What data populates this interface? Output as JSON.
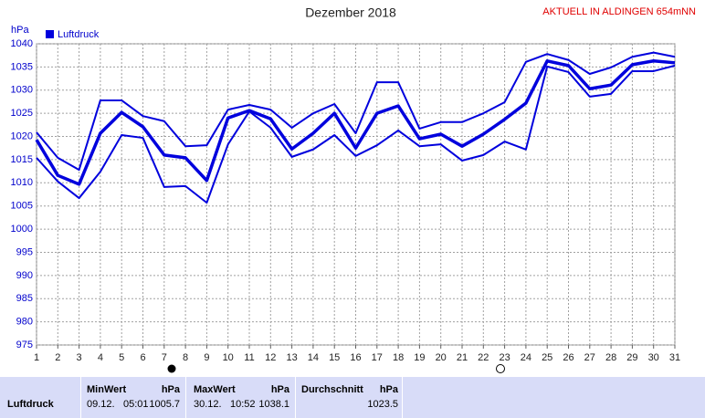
{
  "chart_data": {
    "type": "line",
    "title": "Dezember 2018",
    "subtitle": "AKTUELL IN ALDINGEN 654mNN",
    "y_label": "hPa",
    "x": [
      1,
      2,
      3,
      4,
      5,
      6,
      7,
      8,
      9,
      10,
      11,
      12,
      13,
      14,
      15,
      16,
      17,
      18,
      19,
      20,
      21,
      22,
      23,
      24,
      25,
      26,
      27,
      28,
      29,
      30,
      31
    ],
    "xlim": [
      1,
      31
    ],
    "series": [
      {
        "name": "Luftdruck",
        "color": "#0000dd",
        "values": [
          1019.3,
          1011.6,
          1009.7,
          1020.7,
          1025.2,
          1022.1,
          1016.0,
          1015.4,
          1010.5,
          1024.0,
          1025.6,
          1023.8,
          1017.3,
          1020.7,
          1025.0,
          1017.5,
          1025.0,
          1026.6,
          1019.5,
          1020.5,
          1017.9,
          1020.5,
          1023.7,
          1027.2,
          1036.3,
          1035.3,
          1030.3,
          1031.1,
          1035.5,
          1036.3,
          1035.9
        ],
        "high": [
          1020.9,
          1015.4,
          1012.8,
          1027.8,
          1027.8,
          1024.4,
          1023.3,
          1017.9,
          1018.1,
          1025.8,
          1026.8,
          1025.8,
          1021.9,
          1025.0,
          1027.0,
          1020.7,
          1031.7,
          1031.7,
          1021.7,
          1023.1,
          1023.1,
          1025.0,
          1027.4,
          1036.1,
          1037.8,
          1036.5,
          1033.5,
          1034.9,
          1037.2,
          1038.1,
          1037.2
        ],
        "low": [
          1015.4,
          1010.3,
          1006.7,
          1012.4,
          1020.3,
          1019.7,
          1009.1,
          1009.3,
          1005.7,
          1018.3,
          1025.4,
          1021.9,
          1015.6,
          1017.2,
          1020.3,
          1015.8,
          1018.1,
          1021.3,
          1017.9,
          1018.3,
          1014.8,
          1016.0,
          1018.9,
          1017.2,
          1035.1,
          1033.9,
          1028.6,
          1029.2,
          1034.1,
          1034.1,
          1035.3
        ]
      }
    ],
    "ylim": [
      975,
      1040
    ],
    "yticks": [
      975,
      980,
      985,
      990,
      995,
      1000,
      1005,
      1010,
      1015,
      1020,
      1025,
      1030,
      1035,
      1040
    ],
    "grid": true
  },
  "summary": {
    "row_label": "Luftdruck",
    "columns": [
      {
        "title": "MinWert",
        "unit": "hPa",
        "date": "09.12.",
        "time": "05:01",
        "value": "1005.7"
      },
      {
        "title": "MaxWert",
        "unit": "hPa",
        "date": "30.12.",
        "time": "10:52",
        "value": "1038.1"
      },
      {
        "title": "Durchschnitt",
        "unit": "hPa",
        "value": "1023.5"
      }
    ]
  }
}
